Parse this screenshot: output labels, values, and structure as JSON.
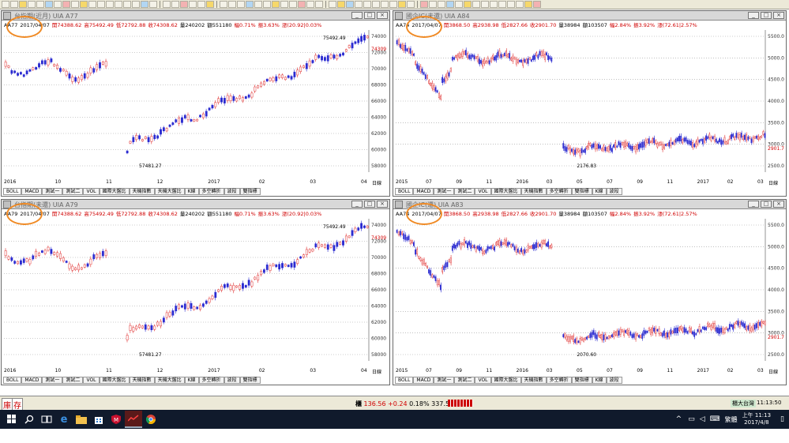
{
  "toolbar": {
    "count_buttons": ""
  },
  "windows": [
    {
      "id": "w1",
      "title": "台指期(近月) UIA A77",
      "info": {
        "code": "AA77",
        "date": "2017/04/07",
        "open": "開74388.62",
        "high": "高75492.49",
        "low": "低72792.88",
        "close": "收74308.62",
        "vol": "量240202",
        "amt": "額551180",
        "chg": "幅0.71%",
        "amp": "振3.63%",
        "extra": "漲(20.92|0.03%"
      },
      "peak_label": "75492.49",
      "low_label": "57481.27",
      "last_price": "74309",
      "y_labels": [
        "74000",
        "72000",
        "70000",
        "68000",
        "66000",
        "64000",
        "62000",
        "60000",
        "58000"
      ],
      "x_labels": [
        "2016",
        "10",
        "11",
        "12",
        "2017",
        "02",
        "03",
        "04"
      ],
      "x_end": "日線",
      "tabs": [
        "BOLL",
        "MACD",
        "測試一",
        "測試二",
        "VOL",
        "國際大盤比",
        "天機指數",
        "天機大盤比",
        "K線",
        "多空轉折",
        "波段",
        "雙指標"
      ]
    },
    {
      "id": "w2",
      "title": "國企IC(未還) UIA A84",
      "info": {
        "code": "AA74",
        "date": "2017/04/07",
        "open": "開3868.50",
        "high": "高2938.98",
        "low": "低2827.66",
        "close": "收2901.70",
        "vol": "量38984",
        "amt": "額103507",
        "chg": "幅2.84%",
        "amp": "振3.92%",
        "extra": "漲(72.61|2.57%"
      },
      "peak_label": "",
      "low_label": "2176.83",
      "last_price": "2901.7",
      "y_labels": [
        "5500.0",
        "5000.0",
        "4500.0",
        "4000.0",
        "3500.0",
        "3000.0",
        "2500.0"
      ],
      "x_labels": [
        "2015",
        "07",
        "09",
        "11",
        "2016",
        "03",
        "05",
        "07",
        "09",
        "11",
        "2017",
        "02",
        "03"
      ],
      "x_end": "日線",
      "tabs": [
        "BOLL",
        "MACD",
        "測試一",
        "測試二",
        "VOL",
        "國際大盤比",
        "天機指數",
        "多空轉折",
        "雙指標",
        "K線",
        "波段"
      ]
    },
    {
      "id": "w3",
      "title": "台指期(未還) UIA A79",
      "info": {
        "code": "AA79",
        "date": "2017/04/07",
        "open": "開74388.62",
        "high": "高75492.49",
        "low": "低72792.88",
        "close": "收74308.62",
        "vol": "量240202",
        "amt": "額551180",
        "chg": "幅0.71%",
        "amp": "振3.63%",
        "extra": "漲(20.92|0.03%"
      },
      "peak_label": "75492.49",
      "low_label": "57481.27",
      "last_price": "74309",
      "y_labels": [
        "74000",
        "72000",
        "70000",
        "68000",
        "66000",
        "64000",
        "62000",
        "60000",
        "58000"
      ],
      "x_labels": [
        "2016",
        "10",
        "11",
        "12",
        "2017",
        "02",
        "03",
        "04"
      ],
      "x_end": "日線",
      "tabs": [
        "BOLL",
        "MACD",
        "測試一",
        "測試二",
        "VOL",
        "國際大盤比",
        "天機指數",
        "天機大盤比",
        "K線",
        "多空轉折",
        "波段",
        "雙指標"
      ]
    },
    {
      "id": "w4",
      "title": "國企IC(還) UIA A83",
      "info": {
        "code": "AA74",
        "date": "2017/04/07",
        "open": "開3868.50",
        "high": "高2938.98",
        "low": "低2827.66",
        "close": "收2901.70",
        "vol": "量38984",
        "amt": "額103507",
        "chg": "幅2.84%",
        "amp": "振3.92%",
        "extra": "漲(72.61|2.57%"
      },
      "peak_label": "",
      "low_label": "2070.60",
      "last_price": "2901.7",
      "y_labels": [
        "5500.0",
        "5000.0",
        "4500.0",
        "4000.0",
        "3500.0",
        "3000.0",
        "2500.0"
      ],
      "x_labels": [
        "2015",
        "07",
        "09",
        "11",
        "2016",
        "03",
        "05",
        "07",
        "09",
        "11",
        "2017",
        "02",
        "03"
      ],
      "x_end": "日線",
      "tabs": [
        "BOLL",
        "MACD",
        "測試一",
        "測試二",
        "VOL",
        "國際大盤比",
        "天機指數",
        "多空轉折",
        "雙指標",
        "K線",
        "波段"
      ]
    }
  ],
  "status": {
    "left_chars": [
      "庫",
      "存"
    ],
    "ticker_label": "櫃",
    "ticker_value": "136.56",
    "ticker_change": "+0.24",
    "ticker_pct": "0.18%",
    "ticker_amount": "337.52億",
    "right_label": "櫃大台灣",
    "right_time": "11:13:50"
  },
  "taskbar": {
    "time": "上午 11:13",
    "date": "2017/4/8",
    "lang": "繁體",
    "icons": [
      "windows-icon",
      "search-icon",
      "task-view-icon",
      "edge-icon",
      "explorer-icon",
      "store-icon",
      "mcafee-icon",
      "stock-app-icon",
      "chrome-icon"
    ]
  },
  "chart_data": [
    {
      "type": "candlestick",
      "title": "台指期(近月) UIA A77",
      "x_labels": [
        "2016",
        "10",
        "11",
        "12",
        "2017",
        "02",
        "03",
        "04"
      ],
      "ylim": [
        57000,
        76000
      ],
      "low_point": 57481.27,
      "high_point": 75492.49,
      "close": 74308.62
    },
    {
      "type": "candlestick",
      "title": "國企IC(未還) UIA A84",
      "ylim": [
        2000,
        5600
      ],
      "low_point": 2176.83,
      "close": 2901.7
    },
    {
      "type": "candlestick",
      "title": "台指期(未還) UIA A79",
      "ylim": [
        57000,
        76000
      ],
      "low_point": 57481.27,
      "high_point": 75492.49,
      "close": 74308.62
    },
    {
      "type": "candlestick",
      "title": "國企IC(還) UIA A83",
      "ylim": [
        2000,
        5600
      ],
      "low_point": 2070.6,
      "close": 2901.7
    }
  ]
}
